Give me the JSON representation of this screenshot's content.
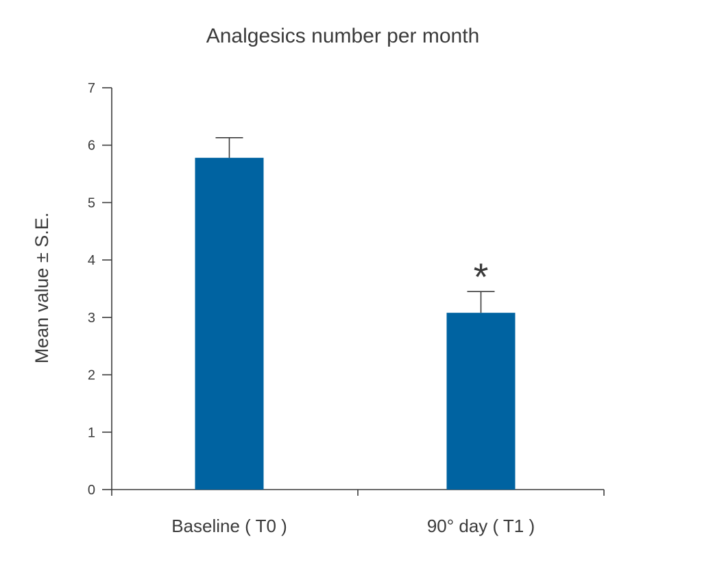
{
  "chart_data": {
    "type": "bar",
    "title": "Analgesics number per month",
    "xlabel": "",
    "ylabel": "Mean value ± S.E.",
    "categories": [
      "Baseline ( T0 )",
      "90° day ( T1 )"
    ],
    "values": [
      5.78,
      3.08
    ],
    "errors": [
      0.35,
      0.37
    ],
    "annotations": [
      "",
      "*"
    ],
    "ylim": [
      0,
      7
    ],
    "yticks": [
      "0",
      "1",
      "2",
      "3",
      "4",
      "5",
      "6",
      "7"
    ],
    "grid": false,
    "legend": "none",
    "bar_color": "#0063a1"
  }
}
